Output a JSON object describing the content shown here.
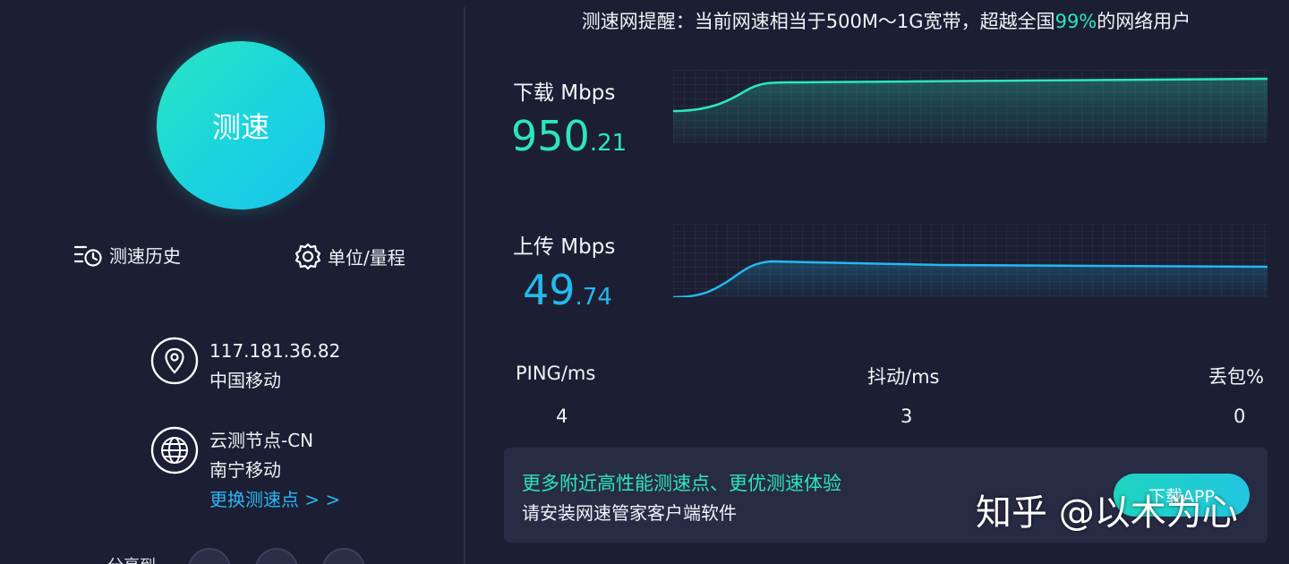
{
  "speed_button": {
    "label": "测速"
  },
  "tools": {
    "history_label": "测速历史",
    "units_label": "单位/量程"
  },
  "ip_info": {
    "ip": "117.181.36.82",
    "isp": "中国移动"
  },
  "node_info": {
    "node": "云测节点-CN",
    "location": "南宁移动",
    "change_link": "更换测速点 > >"
  },
  "share": {
    "label": "分享到",
    "icons": [
      "qq-icon",
      "wechat-icon",
      "weibo-icon"
    ]
  },
  "tip": {
    "prefix": "测速网提醒：当前网速相当于500M～1G宽带，超越全国",
    "percent": "99%",
    "suffix": "的网络用户"
  },
  "download": {
    "label": "下载 Mbps",
    "integer": "950",
    "decimal": ".21",
    "color": "#2ce6c0"
  },
  "upload": {
    "label": "上传 Mbps",
    "integer": "49",
    "decimal": ".74",
    "color": "#23b9ee"
  },
  "stats": {
    "ping_label": "PING/ms",
    "ping_value": "4",
    "jitter_label": "抖动/ms",
    "jitter_value": "3",
    "loss_label": "丢包%",
    "loss_value": "0"
  },
  "promo": {
    "line1": "更多附近高性能测速点、更优测速体验",
    "line2": "请安装网速管家客户端软件",
    "button_label": "下载APP"
  },
  "watermark": "知乎 @以木为心",
  "colors": {
    "background": "#1c1f33",
    "accent_green": "#2ce6c0",
    "accent_blue": "#23b9ee",
    "link": "#29b6f6"
  }
}
